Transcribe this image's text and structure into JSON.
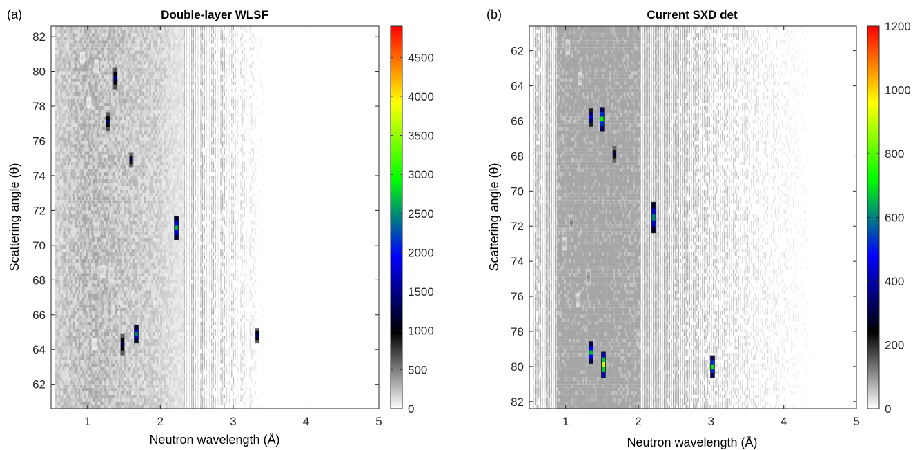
{
  "chart_data": [
    {
      "type": "heatmap",
      "panel_label": "(a)",
      "title": "Double-layer WLSF",
      "xlabel": "Neutron wavelength (Å)",
      "ylabel": "Scattering angle (θ)",
      "xlim": [
        0.5,
        5
      ],
      "ylim": [
        60.6,
        82.6
      ],
      "y_direction": "normal",
      "xticks": [
        1,
        2,
        3,
        4,
        5
      ],
      "yticks": [
        62,
        64,
        66,
        68,
        70,
        72,
        74,
        76,
        78,
        80,
        82
      ],
      "colorbar": {
        "min": 0,
        "max": 4900,
        "ticks": [
          0,
          500,
          1000,
          1500,
          2000,
          2500,
          3000,
          3500,
          4000,
          4500
        ]
      },
      "background_intensity": [
        {
          "x": 0.6,
          "value": 80
        },
        {
          "x": 1.0,
          "value": 110
        },
        {
          "x": 1.5,
          "value": 90
        },
        {
          "x": 2.0,
          "value": 70
        },
        {
          "x": 2.2,
          "value": 45
        },
        {
          "x": 2.5,
          "value": 30
        },
        {
          "x": 2.9,
          "value": 25
        },
        {
          "x": 3.3,
          "value": 8
        },
        {
          "x": 3.5,
          "value": 0
        }
      ],
      "background_xmax": 3.4,
      "peaks": [
        {
          "x": 1.38,
          "y": 79.6,
          "value": 1400,
          "height": 1.2
        },
        {
          "x": 1.28,
          "y": 77.1,
          "value": 1350,
          "height": 1.0
        },
        {
          "x": 1.6,
          "y": 74.9,
          "value": 1250,
          "height": 0.8
        },
        {
          "x": 2.22,
          "y": 71.0,
          "value": 2600,
          "height": 1.3
        },
        {
          "x": 1.48,
          "y": 64.3,
          "value": 1300,
          "height": 1.2
        },
        {
          "x": 1.67,
          "y": 64.9,
          "value": 2400,
          "height": 1.0
        },
        {
          "x": 3.33,
          "y": 64.8,
          "value": 1400,
          "height": 0.8
        },
        {
          "x": 1.12,
          "y": 70.9,
          "value": 250,
          "height": 0.8
        },
        {
          "x": 1.33,
          "y": 68.3,
          "value": 250,
          "height": 0.8
        },
        {
          "x": 1.21,
          "y": 68.5,
          "value": 200,
          "height": 0.7
        },
        {
          "x": 1.12,
          "y": 80.3,
          "value": 200,
          "height": 0.7
        },
        {
          "x": 0.93,
          "y": 80.8,
          "value": 180,
          "height": 0.6
        },
        {
          "x": 1.02,
          "y": 78.2,
          "value": 150,
          "height": 0.6
        },
        {
          "x": 1.1,
          "y": 64.3,
          "value": 150,
          "height": 0.6
        }
      ]
    },
    {
      "type": "heatmap",
      "panel_label": "(b)",
      "title": "Current SXD det",
      "xlabel": "Neutron wavelength (Å)",
      "ylabel": "Scattering angle (θ)",
      "xlim": [
        0.5,
        5
      ],
      "ylim": [
        60.6,
        82.4
      ],
      "y_direction": "reverse",
      "xticks": [
        1,
        2,
        3,
        4,
        5
      ],
      "yticks": [
        62,
        64,
        66,
        68,
        70,
        72,
        74,
        76,
        78,
        80,
        82
      ],
      "colorbar": {
        "min": 0,
        "max": 1200,
        "ticks": [
          0,
          200,
          400,
          600,
          800,
          1000,
          1200
        ]
      },
      "background_intensity": [
        {
          "x": 0.6,
          "value": 30
        },
        {
          "x": 1.0,
          "value": 45
        },
        {
          "x": 1.5,
          "value": 50
        },
        {
          "x": 2.0,
          "value": 40
        },
        {
          "x": 2.6,
          "value": 30
        },
        {
          "x": 3.0,
          "value": 22
        },
        {
          "x": 3.5,
          "value": 15
        },
        {
          "x": 4.0,
          "value": 8
        },
        {
          "x": 4.4,
          "value": 2
        },
        {
          "x": 4.8,
          "value": 0
        }
      ],
      "background_xmax": 4.8,
      "peaks": [
        {
          "x": 1.35,
          "y": 65.8,
          "value": 450,
          "height": 1.0
        },
        {
          "x": 1.5,
          "y": 65.9,
          "value": 700,
          "height": 1.3
        },
        {
          "x": 1.67,
          "y": 67.9,
          "value": 300,
          "height": 0.9
        },
        {
          "x": 2.21,
          "y": 71.5,
          "value": 600,
          "height": 1.7
        },
        {
          "x": 1.35,
          "y": 79.2,
          "value": 650,
          "height": 1.2
        },
        {
          "x": 1.52,
          "y": 79.9,
          "value": 900,
          "height": 1.4
        },
        {
          "x": 3.02,
          "y": 80.0,
          "value": 700,
          "height": 1.2
        },
        {
          "x": 1.03,
          "y": 61.8,
          "value": 80,
          "height": 0.8
        },
        {
          "x": 1.08,
          "y": 71.8,
          "value": 120,
          "height": 0.8
        },
        {
          "x": 1.31,
          "y": 74.9,
          "value": 120,
          "height": 0.9
        },
        {
          "x": 0.98,
          "y": 73.0,
          "value": 80,
          "height": 0.7
        },
        {
          "x": 1.17,
          "y": 76.2,
          "value": 70,
          "height": 0.7
        },
        {
          "x": 1.2,
          "y": 63.6,
          "value": 70,
          "height": 0.7
        }
      ]
    }
  ]
}
